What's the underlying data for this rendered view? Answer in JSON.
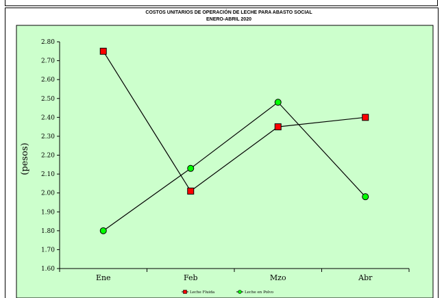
{
  "chart_data": {
    "type": "line",
    "title": "COSTOS UNITARIOS DE OPERACIÓN DE LECHE PARA ABASTO SOCIAL",
    "subtitle": "ENERO-ABRIL 2020",
    "xlabel": "",
    "ylabel": "(pesos)",
    "ylim": [
      1.6,
      2.8
    ],
    "ytick_step": 0.1,
    "yticks": [
      "1.60",
      "1.70",
      "1.80",
      "1.90",
      "2.00",
      "2.10",
      "2.20",
      "2.30",
      "2.40",
      "2.50",
      "2.60",
      "2.70",
      "2.80"
    ],
    "categories": [
      "Ene",
      "Feb",
      "Mzo",
      "Abr"
    ],
    "grid": false,
    "plot_background": "#ccffcc",
    "legend_position": "bottom",
    "series": [
      {
        "name": "Leche Fluida",
        "values": [
          2.75,
          2.01,
          2.35,
          2.4
        ],
        "marker": "square",
        "color": "#ff0000"
      },
      {
        "name": "Leche en Polvo",
        "values": [
          1.8,
          2.13,
          2.48,
          1.98
        ],
        "marker": "circle",
        "color": "#00ff00"
      }
    ]
  }
}
